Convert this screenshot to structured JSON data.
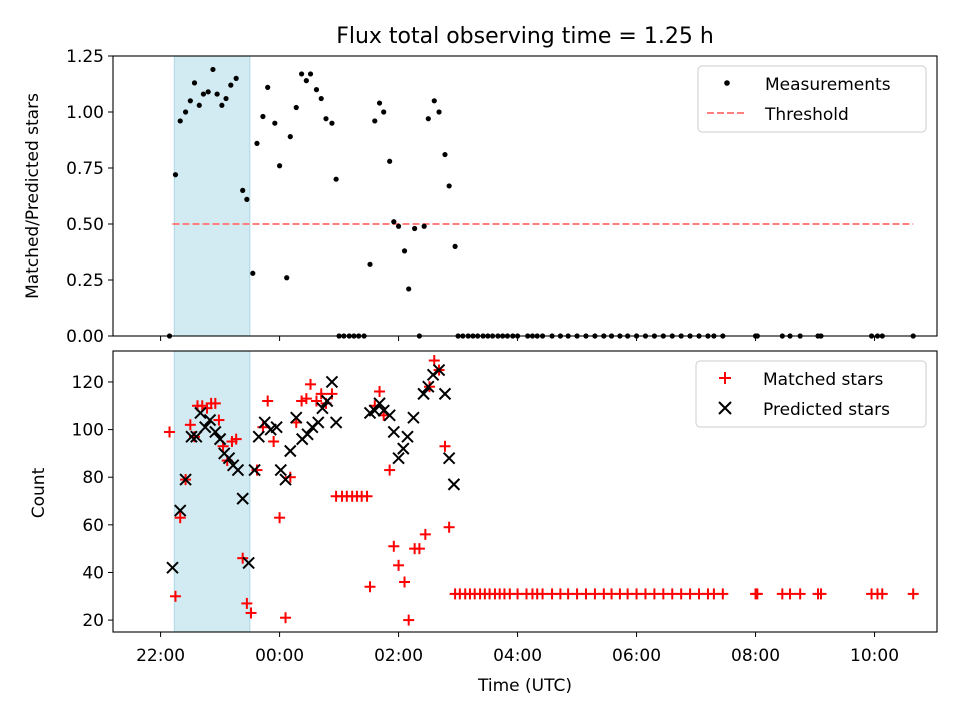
{
  "title": "Flux total observing time = 1.25 h",
  "colors": {
    "shade": "#add8e6",
    "measurement": "#000000",
    "threshold": "#ff7f7f",
    "matched": "#ff0000",
    "predicted": "#000000"
  },
  "chart_data": [
    {
      "type": "scatter",
      "ylabel": "Matched/Predicted stars",
      "xlim_hours": [
        21.2,
        35.05
      ],
      "ylim": [
        0,
        1.25
      ],
      "yticks": [
        0,
        0.25,
        0.5,
        0.75,
        1.0,
        1.25
      ],
      "ytick_labels": [
        "0.00",
        "0.25",
        "0.50",
        "0.75",
        "1.00",
        "1.25"
      ],
      "shaded_span_hours": [
        22.23,
        23.5
      ],
      "legend": {
        "placement": "top-right",
        "labels": [
          "Measurements",
          "Threshold"
        ]
      },
      "threshold": {
        "value": 0.5,
        "x_range_hours": [
          22.2,
          34.65
        ]
      },
      "series": [
        {
          "name": "Measurements",
          "points": [
            [
              22.15,
              0.0
            ],
            [
              22.25,
              0.72
            ],
            [
              22.33,
              0.96
            ],
            [
              22.42,
              1.0
            ],
            [
              22.5,
              1.05
            ],
            [
              22.57,
              1.13
            ],
            [
              22.65,
              1.03
            ],
            [
              22.72,
              1.08
            ],
            [
              22.8,
              1.09
            ],
            [
              22.88,
              1.19
            ],
            [
              22.95,
              1.08
            ],
            [
              23.03,
              1.03
            ],
            [
              23.1,
              1.06
            ],
            [
              23.18,
              1.12
            ],
            [
              23.27,
              1.15
            ],
            [
              23.38,
              0.65
            ],
            [
              23.45,
              0.61
            ],
            [
              23.55,
              0.28
            ],
            [
              23.62,
              0.86
            ],
            [
              23.72,
              0.98
            ],
            [
              23.8,
              1.11
            ],
            [
              23.92,
              0.95
            ],
            [
              24.0,
              0.76
            ],
            [
              24.12,
              0.26
            ],
            [
              24.18,
              0.89
            ],
            [
              24.28,
              1.02
            ],
            [
              24.37,
              1.17
            ],
            [
              24.45,
              1.14
            ],
            [
              24.52,
              1.17
            ],
            [
              24.62,
              1.1
            ],
            [
              24.7,
              1.06
            ],
            [
              24.78,
              0.97
            ],
            [
              24.88,
              0.95
            ],
            [
              24.95,
              0.7
            ],
            [
              25.0,
              0.0
            ],
            [
              25.08,
              0.0
            ],
            [
              25.17,
              0.0
            ],
            [
              25.25,
              0.0
            ],
            [
              25.33,
              0.0
            ],
            [
              25.42,
              0.0
            ],
            [
              25.52,
              0.32
            ],
            [
              25.6,
              0.96
            ],
            [
              25.68,
              1.04
            ],
            [
              25.75,
              1.0
            ],
            [
              25.85,
              0.78
            ],
            [
              25.92,
              0.51
            ],
            [
              26.0,
              0.49
            ],
            [
              26.1,
              0.38
            ],
            [
              26.17,
              0.21
            ],
            [
              26.27,
              0.48
            ],
            [
              26.35,
              0.0
            ],
            [
              26.43,
              0.49
            ],
            [
              26.5,
              0.97
            ],
            [
              26.6,
              1.05
            ],
            [
              26.68,
              1.0
            ],
            [
              26.78,
              0.81
            ],
            [
              26.85,
              0.67
            ],
            [
              26.95,
              0.4
            ],
            [
              27.0,
              0.0
            ],
            [
              27.08,
              0.0
            ],
            [
              27.17,
              0.0
            ],
            [
              27.25,
              0.0
            ],
            [
              27.33,
              0.0
            ],
            [
              27.42,
              0.0
            ],
            [
              27.5,
              0.0
            ],
            [
              27.58,
              0.0
            ],
            [
              27.67,
              0.0
            ],
            [
              27.75,
              0.0
            ],
            [
              27.83,
              0.0
            ],
            [
              27.92,
              0.0
            ],
            [
              28.0,
              0.0
            ],
            [
              28.17,
              0.0
            ],
            [
              28.25,
              0.0
            ],
            [
              28.33,
              0.0
            ],
            [
              28.42,
              0.0
            ],
            [
              28.58,
              0.0
            ],
            [
              28.72,
              0.0
            ],
            [
              28.85,
              0.0
            ],
            [
              29.0,
              0.0
            ],
            [
              29.15,
              0.0
            ],
            [
              29.3,
              0.0
            ],
            [
              29.45,
              0.0
            ],
            [
              29.58,
              0.0
            ],
            [
              29.72,
              0.0
            ],
            [
              29.85,
              0.0
            ],
            [
              30.0,
              0.0
            ],
            [
              30.15,
              0.0
            ],
            [
              30.3,
              0.0
            ],
            [
              30.45,
              0.0
            ],
            [
              30.6,
              0.0
            ],
            [
              30.75,
              0.0
            ],
            [
              30.9,
              0.0
            ],
            [
              31.05,
              0.0
            ],
            [
              31.2,
              0.0
            ],
            [
              31.3,
              0.0
            ],
            [
              31.45,
              0.0
            ],
            [
              32.0,
              0.0
            ],
            [
              32.03,
              0.0
            ],
            [
              32.45,
              0.0
            ],
            [
              32.58,
              0.0
            ],
            [
              32.75,
              0.0
            ],
            [
              33.05,
              0.0
            ],
            [
              33.1,
              0.0
            ],
            [
              33.95,
              0.0
            ],
            [
              34.05,
              0.0
            ],
            [
              34.13,
              0.0
            ],
            [
              34.65,
              0.0
            ]
          ]
        }
      ]
    },
    {
      "type": "scatter",
      "xlabel": "Time (UTC)",
      "ylabel": "Count",
      "xlim_hours": [
        21.2,
        35.05
      ],
      "ylim": [
        15,
        133
      ],
      "yticks": [
        20,
        40,
        60,
        80,
        100,
        120
      ],
      "xticks_hours": [
        22,
        24,
        26,
        28,
        30,
        32,
        34
      ],
      "xtick_labels": [
        "22:00",
        "00:00",
        "02:00",
        "04:00",
        "06:00",
        "08:00",
        "10:00"
      ],
      "shaded_span_hours": [
        22.23,
        23.5
      ],
      "legend": {
        "placement": "top-right",
        "labels": [
          "Matched stars",
          "Predicted stars"
        ]
      },
      "series": [
        {
          "name": "Matched stars",
          "marker": "+",
          "points": [
            [
              22.15,
              99
            ],
            [
              22.25,
              30
            ],
            [
              22.33,
              63
            ],
            [
              22.42,
              79
            ],
            [
              22.5,
              102
            ],
            [
              22.57,
              97
            ],
            [
              22.62,
              110
            ],
            [
              22.7,
              110
            ],
            [
              22.78,
              109
            ],
            [
              22.85,
              111
            ],
            [
              22.92,
              111
            ],
            [
              22.98,
              104
            ],
            [
              23.05,
              93
            ],
            [
              23.12,
              87
            ],
            [
              23.2,
              95
            ],
            [
              23.27,
              96
            ],
            [
              23.38,
              46
            ],
            [
              23.45,
              27
            ],
            [
              23.52,
              23
            ],
            [
              23.62,
              83
            ],
            [
              23.72,
              101
            ],
            [
              23.8,
              112
            ],
            [
              23.9,
              95
            ],
            [
              24.0,
              63
            ],
            [
              24.1,
              21
            ],
            [
              24.18,
              80
            ],
            [
              24.28,
              103
            ],
            [
              24.37,
              112
            ],
            [
              24.45,
              113
            ],
            [
              24.52,
              119
            ],
            [
              24.62,
              112
            ],
            [
              24.7,
              115
            ],
            [
              24.78,
              111
            ],
            [
              24.88,
              115
            ],
            [
              24.95,
              72
            ],
            [
              25.05,
              72
            ],
            [
              25.13,
              72
            ],
            [
              25.22,
              72
            ],
            [
              25.3,
              72
            ],
            [
              25.38,
              72
            ],
            [
              25.47,
              72
            ],
            [
              25.52,
              34
            ],
            [
              25.6,
              110
            ],
            [
              25.68,
              116
            ],
            [
              25.75,
              106
            ],
            [
              25.85,
              83
            ],
            [
              25.92,
              51
            ],
            [
              26.0,
              43
            ],
            [
              26.1,
              36
            ],
            [
              26.17,
              20
            ],
            [
              26.27,
              50
            ],
            [
              26.35,
              50
            ],
            [
              26.45,
              56
            ],
            [
              26.52,
              118
            ],
            [
              26.6,
              129
            ],
            [
              26.68,
              125
            ],
            [
              26.78,
              93
            ],
            [
              26.85,
              59
            ],
            [
              26.95,
              31
            ],
            [
              27.03,
              31
            ],
            [
              27.12,
              31
            ],
            [
              27.2,
              31
            ],
            [
              27.28,
              31
            ],
            [
              27.37,
              31
            ],
            [
              27.45,
              31
            ],
            [
              27.53,
              31
            ],
            [
              27.62,
              31
            ],
            [
              27.7,
              31
            ],
            [
              27.78,
              31
            ],
            [
              27.87,
              31
            ],
            [
              28.0,
              31
            ],
            [
              28.15,
              31
            ],
            [
              28.25,
              31
            ],
            [
              28.33,
              31
            ],
            [
              28.42,
              31
            ],
            [
              28.58,
              31
            ],
            [
              28.72,
              31
            ],
            [
              28.85,
              31
            ],
            [
              29.0,
              31
            ],
            [
              29.15,
              31
            ],
            [
              29.3,
              31
            ],
            [
              29.45,
              31
            ],
            [
              29.58,
              31
            ],
            [
              29.72,
              31
            ],
            [
              29.85,
              31
            ],
            [
              30.0,
              31
            ],
            [
              30.15,
              31
            ],
            [
              30.3,
              31
            ],
            [
              30.45,
              31
            ],
            [
              30.6,
              31
            ],
            [
              30.75,
              31
            ],
            [
              30.9,
              31
            ],
            [
              31.05,
              31
            ],
            [
              31.2,
              31
            ],
            [
              31.3,
              31
            ],
            [
              31.45,
              31
            ],
            [
              32.0,
              31
            ],
            [
              32.03,
              31
            ],
            [
              32.45,
              31
            ],
            [
              32.58,
              31
            ],
            [
              32.75,
              31
            ],
            [
              33.05,
              31
            ],
            [
              33.1,
              31
            ],
            [
              33.95,
              31
            ],
            [
              34.05,
              31
            ],
            [
              34.13,
              31
            ],
            [
              34.65,
              31
            ]
          ]
        },
        {
          "name": "Predicted stars",
          "marker": "x",
          "points": [
            [
              22.2,
              42
            ],
            [
              22.33,
              66
            ],
            [
              22.42,
              79
            ],
            [
              22.52,
              97
            ],
            [
              22.6,
              97
            ],
            [
              22.67,
              107
            ],
            [
              22.75,
              101
            ],
            [
              22.83,
              104
            ],
            [
              22.92,
              99
            ],
            [
              23.0,
              96
            ],
            [
              23.07,
              90
            ],
            [
              23.15,
              88
            ],
            [
              23.22,
              85
            ],
            [
              23.3,
              83
            ],
            [
              23.38,
              71
            ],
            [
              23.48,
              44
            ],
            [
              23.58,
              83
            ],
            [
              23.65,
              97
            ],
            [
              23.75,
              103
            ],
            [
              23.85,
              100
            ],
            [
              23.95,
              101
            ],
            [
              24.02,
              83
            ],
            [
              24.1,
              79
            ],
            [
              24.18,
              91
            ],
            [
              24.28,
              105
            ],
            [
              24.38,
              96
            ],
            [
              24.47,
              98
            ],
            [
              24.55,
              101
            ],
            [
              24.65,
              103
            ],
            [
              24.72,
              109
            ],
            [
              24.8,
              112
            ],
            [
              24.88,
              120
            ],
            [
              24.95,
              103
            ],
            [
              25.52,
              107
            ],
            [
              25.6,
              108
            ],
            [
              25.68,
              111
            ],
            [
              25.75,
              108
            ],
            [
              25.85,
              106
            ],
            [
              25.92,
              99
            ],
            [
              26.0,
              88
            ],
            [
              26.08,
              92
            ],
            [
              26.15,
              97
            ],
            [
              26.25,
              105
            ],
            [
              26.42,
              115
            ],
            [
              26.5,
              118
            ],
            [
              26.58,
              123
            ],
            [
              26.68,
              125
            ],
            [
              26.78,
              115
            ],
            [
              26.85,
              88
            ],
            [
              26.93,
              77
            ]
          ]
        }
      ]
    }
  ]
}
